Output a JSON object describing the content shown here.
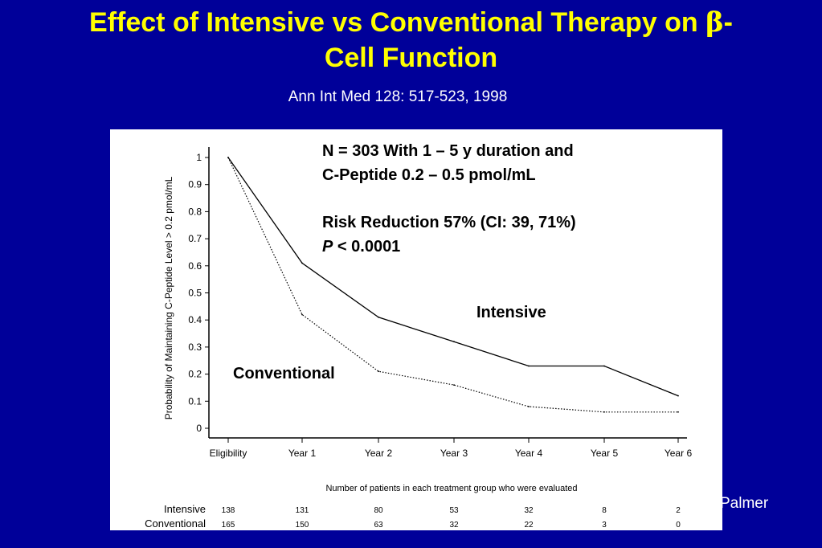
{
  "slide": {
    "title_part1": "Effect of Intensive vs Conventional Therapy on ",
    "title_beta": "β",
    "title_part2": "-",
    "title_line2": "Cell Function",
    "citation": "Ann Int Med 128: 517-523, 1998",
    "credit": "Palmer"
  },
  "colors": {
    "background": "#000099",
    "title": "#ffff00",
    "text": "#ffffff"
  },
  "annotations": {
    "study_line1": "N = 303 With 1 – 5 y duration and",
    "study_line2": "C-Peptide 0.2 – 0.5 pmol/mL",
    "risk_line": "Risk Reduction 57% (CI: 39, 71%)",
    "p_symbol": "P",
    "p_value": " < 0.0001"
  },
  "chart_data": {
    "type": "line",
    "categories": [
      "Eligibility",
      "Year 1",
      "Year 2",
      "Year 3",
      "Year 4",
      "Year 5",
      "Year 6"
    ],
    "ylabel": "Probability of Maintaining C-Peptide Level > 0.2 pmol/mL",
    "ylim": [
      0,
      1
    ],
    "yticks": [
      "0",
      "0.1",
      "0.2",
      "0.3",
      "0.4",
      "0.5",
      "0.6",
      "0.7",
      "0.8",
      "0.9",
      "1"
    ],
    "series": [
      {
        "name": "Intensive",
        "style": "solid",
        "values": [
          1.0,
          0.61,
          0.41,
          0.32,
          0.23,
          0.23,
          0.12
        ]
      },
      {
        "name": "Conventional",
        "style": "dotted",
        "values": [
          1.0,
          0.42,
          0.21,
          0.16,
          0.08,
          0.06,
          0.06
        ]
      }
    ],
    "table_title": "Number of patients in each treatment group who were evaluated",
    "table": [
      {
        "name": "Intensive",
        "counts": [
          "138",
          "131",
          "80",
          "53",
          "32",
          "8",
          "2"
        ]
      },
      {
        "name": "Conventional",
        "counts": [
          "165",
          "150",
          "63",
          "32",
          "22",
          "3",
          "0"
        ]
      }
    ]
  }
}
